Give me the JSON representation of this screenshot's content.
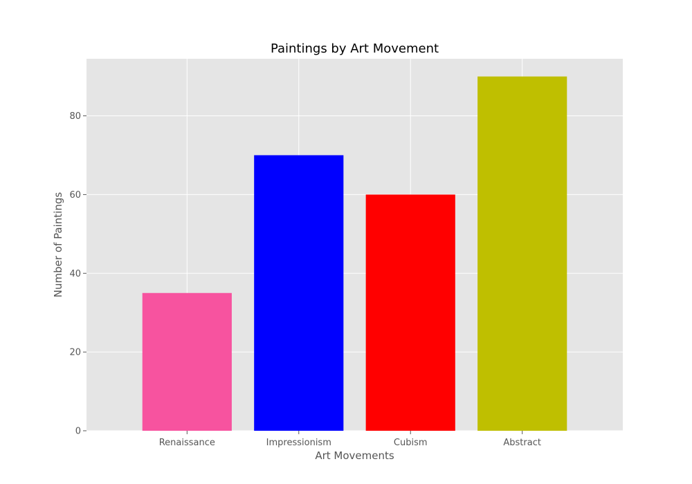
{
  "chart_data": {
    "type": "bar",
    "title": "Paintings by Art Movement",
    "xlabel": "Art Movements",
    "ylabel": "Number of Paintings",
    "categories": [
      "Renaissance",
      "Impressionism",
      "Cubism",
      "Abstract"
    ],
    "values": [
      35,
      70,
      60,
      90
    ],
    "colors": [
      "#f7539f",
      "#0000ff",
      "#ff0000",
      "#bfbf00"
    ],
    "ylim": [
      0,
      94.5
    ],
    "yticks": [
      0,
      20,
      40,
      60,
      80
    ],
    "grid": true,
    "background": "#e5e5e5",
    "legend": "none"
  }
}
